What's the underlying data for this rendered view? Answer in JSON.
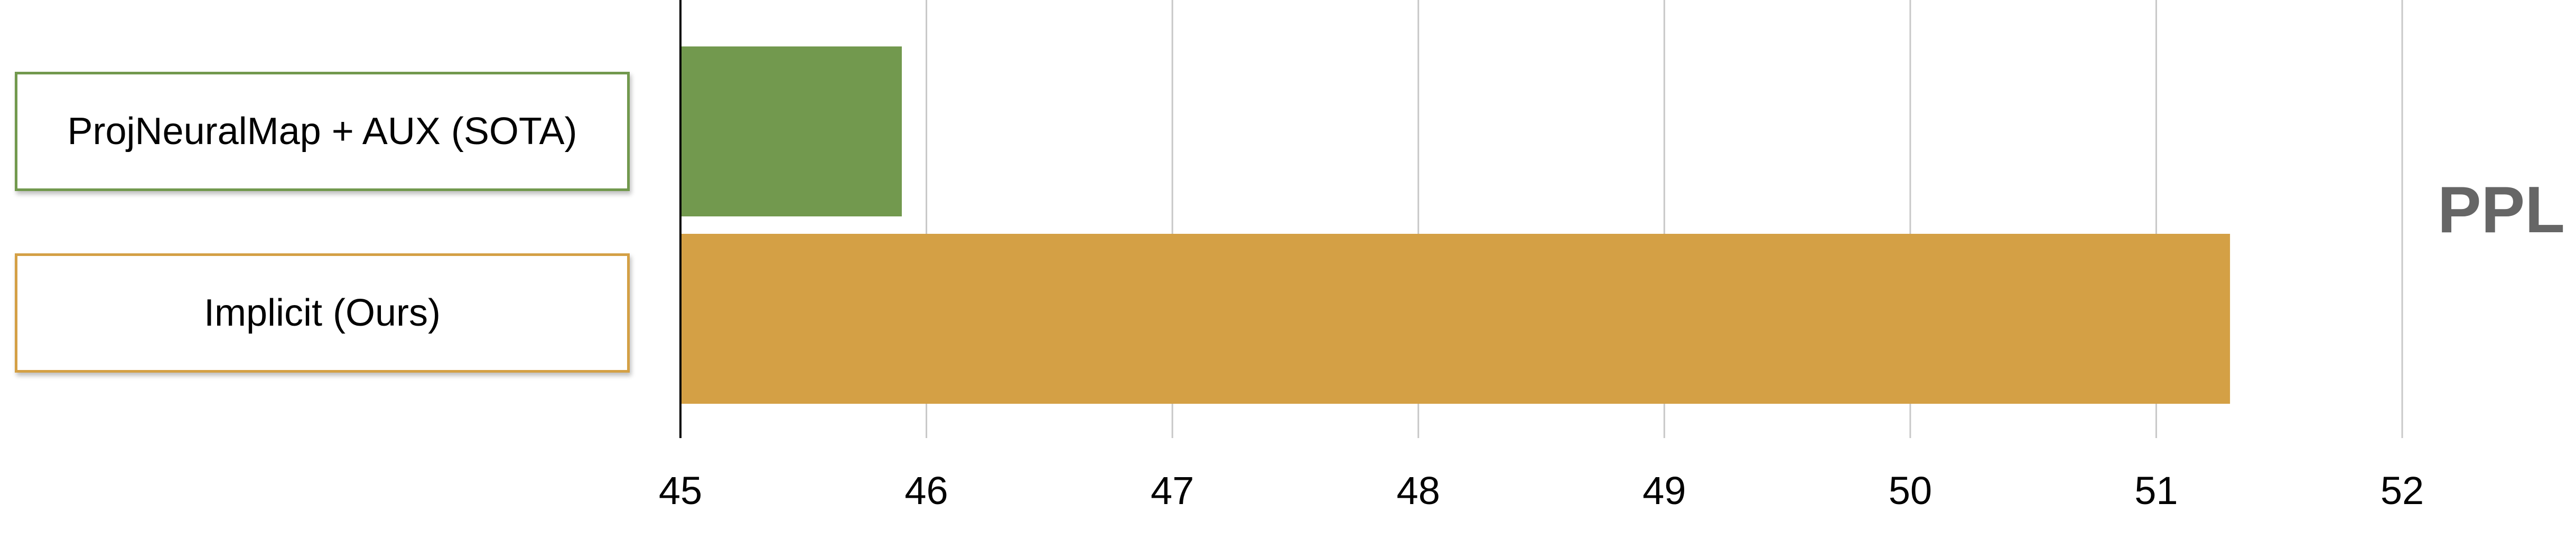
{
  "chart_data": {
    "type": "bar",
    "orientation": "horizontal",
    "categories": [
      "ProjNeuralMap + AUX (SOTA)",
      "Implicit (Ours)"
    ],
    "values": [
      45.9,
      51.3
    ],
    "colors": [
      "#72994e",
      "#d4a045"
    ],
    "label_border_colors": [
      "#72994e",
      "#d4a045"
    ],
    "metric_label": "PPL",
    "xlim": [
      45,
      52
    ],
    "x_ticks": [
      "45",
      "46",
      "47",
      "48",
      "49",
      "50",
      "51",
      "52"
    ],
    "grid": true,
    "legend": "none"
  }
}
